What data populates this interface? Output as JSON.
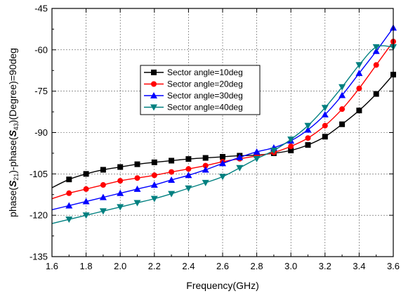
{
  "chart_data": {
    "type": "line",
    "xlabel": "Frequency(GHz)",
    "ylabel": {
      "prefix": "phase(",
      "s1_main": "S",
      "s1_sub": "21",
      "middle": ")-phase(",
      "s2_main": "S",
      "s2_sub": "43",
      "suffix": ")(Degree)=90deg"
    },
    "xlim": [
      1.6,
      3.6
    ],
    "ylim": [
      -135,
      -45
    ],
    "xticks": [
      "1.6",
      "1.8",
      "2.0",
      "2.2",
      "2.4",
      "2.6",
      "2.8",
      "3.0",
      "3.2",
      "3.4",
      "3.6"
    ],
    "yticks": [
      "-45",
      "-60",
      "-75",
      "-90",
      "-105",
      "-120",
      "-135"
    ],
    "grid": true,
    "legend_position": "center",
    "x": [
      1.6,
      1.7,
      1.8,
      1.9,
      2.0,
      2.1,
      2.2,
      2.3,
      2.4,
      2.5,
      2.6,
      2.7,
      2.8,
      2.9,
      3.0,
      3.1,
      3.2,
      3.3,
      3.4,
      3.5,
      3.6
    ],
    "series": [
      {
        "name": "Sector angle=10deg",
        "color": "#000000",
        "marker": "square",
        "values": [
          -110,
          -107,
          -105,
          -103.5,
          -102.5,
          -101.5,
          -100.8,
          -100.2,
          -99.6,
          -99.2,
          -98.8,
          -98.4,
          -98.2,
          -97.5,
          -96.5,
          -94.5,
          -91.5,
          -87,
          -82,
          -76,
          -69
        ]
      },
      {
        "name": "Sector angle=20deg",
        "color": "#ff0000",
        "marker": "circle",
        "values": [
          -114,
          -112,
          -110.5,
          -109,
          -107.5,
          -106.5,
          -105.5,
          -104.3,
          -103.2,
          -102,
          -100.6,
          -99.5,
          -98.5,
          -97.2,
          -95,
          -92,
          -87.5,
          -81.5,
          -74,
          -65.5,
          -57
        ]
      },
      {
        "name": "Sector angle=30deg",
        "color": "#0000ff",
        "marker": "triangle-up",
        "values": [
          -118,
          -116.5,
          -115,
          -113.5,
          -112,
          -110.5,
          -109,
          -107.2,
          -105.5,
          -103.5,
          -101.2,
          -99,
          -97,
          -95.5,
          -93,
          -89,
          -83.5,
          -76.5,
          -68.5,
          -60.5,
          -52
        ]
      },
      {
        "name": "Sector angle=40deg",
        "color": "#008080",
        "marker": "triangle-down",
        "values": [
          -123,
          -121.5,
          -120,
          -118.5,
          -117,
          -115.5,
          -114,
          -112.2,
          -110.2,
          -108.2,
          -106,
          -102.8,
          -99.5,
          -96.5,
          -92.5,
          -87.5,
          -81,
          -73.5,
          -65.5,
          -59,
          -59
        ]
      }
    ]
  }
}
